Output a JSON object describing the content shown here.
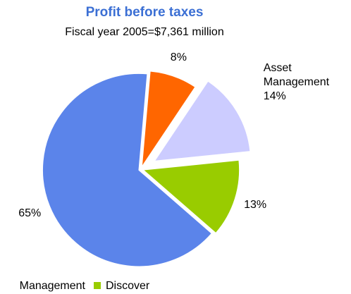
{
  "chart_data": {
    "type": "pie",
    "title": "Profit before taxes",
    "subtitle": "Fiscal year 2005=$7,361 million",
    "categories": [
      null,
      "Asset Management",
      null,
      null
    ],
    "values": [
      8,
      14,
      13,
      65
    ],
    "value_labels": [
      "8%",
      "14%",
      "13%",
      "65%"
    ],
    "colors": [
      "#ff6600",
      "#ccccff",
      "#99cc00",
      "#5b84ea"
    ],
    "exploded": [
      false,
      true,
      false,
      false
    ],
    "legend": [
      {
        "label": "Management"
      },
      {
        "label": "Discover",
        "color": "#99cc00"
      }
    ]
  }
}
